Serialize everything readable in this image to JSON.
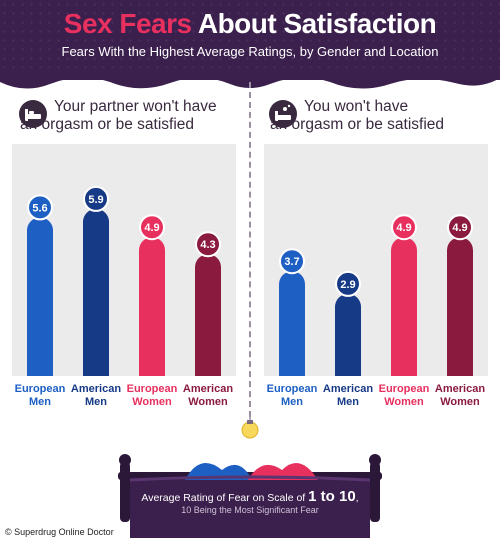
{
  "header": {
    "title_part1": "Sex Fears",
    "title_part2": "About Satisfaction",
    "subtitle": "Fears With the Highest Average Ratings, by Gender and Location"
  },
  "footer": {
    "text_before": "Average Rating of Fear on Scale of ",
    "text_emph": "1 to 10",
    "text_after": ",",
    "subtext": "10 Being the Most Significant Fear",
    "credit": "© Superdrug Online Doctor"
  },
  "colors": {
    "european_men": "#1e5fc4",
    "american_men": "#173a86",
    "european_women": "#e8305f",
    "american_women": "#8b1a3f",
    "header_bg": "#3b1f4d",
    "title_accent": "#e8305f"
  },
  "icons": [
    "bed-icon",
    "bed-dreaming-icon",
    "lightbulb-icon",
    "bed-hearts-icon"
  ],
  "chart_data": [
    {
      "type": "bar",
      "title_line1": "Your partner won't have",
      "title_line2": "an orgasm or be satisfied",
      "categories": [
        [
          "European",
          "Men"
        ],
        [
          "American",
          "Men"
        ],
        [
          "European",
          "Women"
        ],
        [
          "American",
          "Women"
        ]
      ],
      "values": [
        5.6,
        5.9,
        4.9,
        4.3
      ],
      "value_labels": [
        "5.6",
        "5.9",
        "4.9",
        "4.3"
      ],
      "bar_colors": [
        "#1e5fc4",
        "#173a86",
        "#e8305f",
        "#8b1a3f"
      ],
      "ylim": [
        0,
        10
      ]
    },
    {
      "type": "bar",
      "title_line1": "You won't have",
      "title_line2": "an orgasm or be satisfied",
      "categories": [
        [
          "European",
          "Men"
        ],
        [
          "American",
          "Men"
        ],
        [
          "European",
          "Women"
        ],
        [
          "American",
          "Women"
        ]
      ],
      "values": [
        3.7,
        2.9,
        4.9,
        4.9
      ],
      "value_labels": [
        "3.7",
        "2.9",
        "4.9",
        "4.9"
      ],
      "bar_colors": [
        "#1e5fc4",
        "#173a86",
        "#e8305f",
        "#8b1a3f"
      ],
      "ylim": [
        0,
        10
      ]
    }
  ]
}
